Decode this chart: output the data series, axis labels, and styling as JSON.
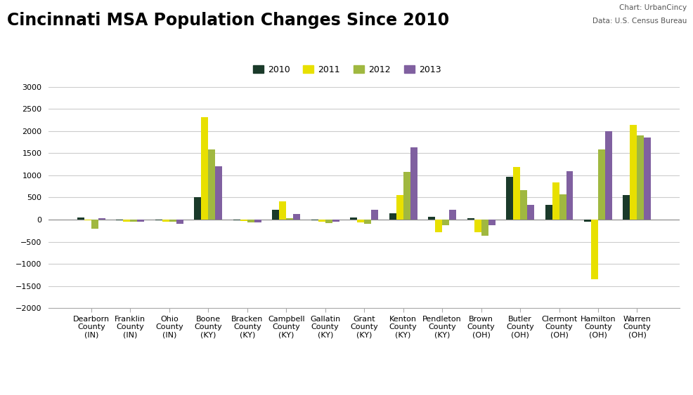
{
  "title": "Cincinnati MSA Population Changes Since 2010",
  "credit_line1": "Chart: UrbanCincy",
  "credit_line2": "Data: U.S. Census Bureau",
  "categories": [
    "Dearborn\nCounty\n(IN)",
    "Franklin\nCounty\n(IN)",
    "Ohio\nCounty\n(IN)",
    "Boone\nCounty\n(KY)",
    "Bracken\nCounty\n(KY)",
    "Campbell\nCounty\n(KY)",
    "Gallatin\nCounty\n(KY)",
    "Grant\nCounty\n(KY)",
    "Kenton\nCounty\n(KY)",
    "Pendleton\nCounty\n(KY)",
    "Brown\nCounty\n(OH)",
    "Butler\nCounty\n(OH)",
    "Clermont\nCounty\n(OH)",
    "Hamilton\nCounty\n(OH)",
    "Warren\nCounty\n(OH)"
  ],
  "series": {
    "2010": [
      55,
      -20,
      -10,
      500,
      -10,
      230,
      -20,
      50,
      150,
      60,
      40,
      970,
      340,
      -50,
      560
    ],
    "2011": [
      -10,
      -50,
      -50,
      2320,
      -30,
      410,
      -40,
      -70,
      560,
      -290,
      -280,
      1190,
      840,
      -1340,
      2140
    ],
    "2012": [
      -210,
      -50,
      -50,
      1590,
      -60,
      30,
      -80,
      -100,
      1080,
      -130,
      -360,
      670,
      570,
      1580,
      1900
    ],
    "2013": [
      40,
      -40,
      -100,
      1200,
      -60,
      120,
      -40,
      230,
      1640,
      230,
      -130,
      330,
      1100,
      2000,
      1860
    ]
  },
  "colors": {
    "2010": "#1a3a2a",
    "2011": "#e8e000",
    "2012": "#a0b840",
    "2013": "#8060a0"
  },
  "legend_labels": [
    "2010",
    "2011",
    "2012",
    "2013"
  ],
  "ylim": [
    -2000,
    3000
  ],
  "yticks": [
    -2000,
    -1500,
    -1000,
    -500,
    0,
    500,
    1000,
    1500,
    2000,
    2500,
    3000
  ],
  "background_color": "#ffffff",
  "grid_color": "#cccccc",
  "title_fontsize": 17,
  "tick_fontsize": 8.0,
  "bar_width": 0.18
}
